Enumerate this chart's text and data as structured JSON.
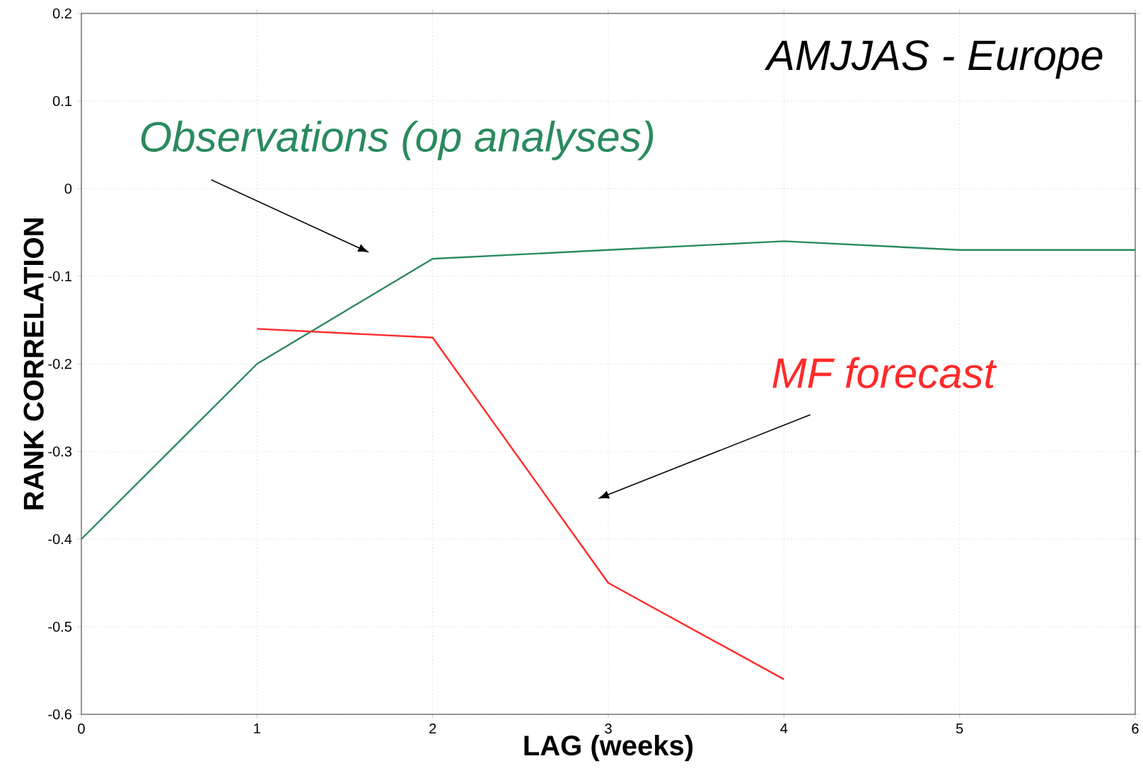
{
  "chart_data": {
    "type": "line",
    "title": "AMJJAS - Europe",
    "xlabel": "LAG (weeks)",
    "ylabel": "RANK CORRELATION",
    "x": [
      0,
      1,
      2,
      3,
      4,
      5,
      6
    ],
    "series": [
      {
        "name": "Observations (op analyses)",
        "color": "#2a8a5e",
        "values": [
          -0.4,
          -0.2,
          -0.08,
          -0.07,
          -0.06,
          -0.07,
          -0.07
        ]
      },
      {
        "name": "MF forecast",
        "color": "#ff2a2a",
        "values": [
          null,
          -0.16,
          -0.17,
          -0.45,
          -0.56,
          null,
          null
        ]
      }
    ],
    "xlim": [
      0,
      6
    ],
    "ylim": [
      -0.6,
      0.2
    ],
    "xticks": [
      0,
      1,
      2,
      3,
      4,
      5,
      6
    ],
    "yticks": [
      -0.6,
      -0.5,
      -0.4,
      -0.3,
      -0.2,
      -0.1,
      0,
      0.1,
      0.2
    ],
    "grid": true,
    "marker": "none",
    "line_style": "solid"
  }
}
